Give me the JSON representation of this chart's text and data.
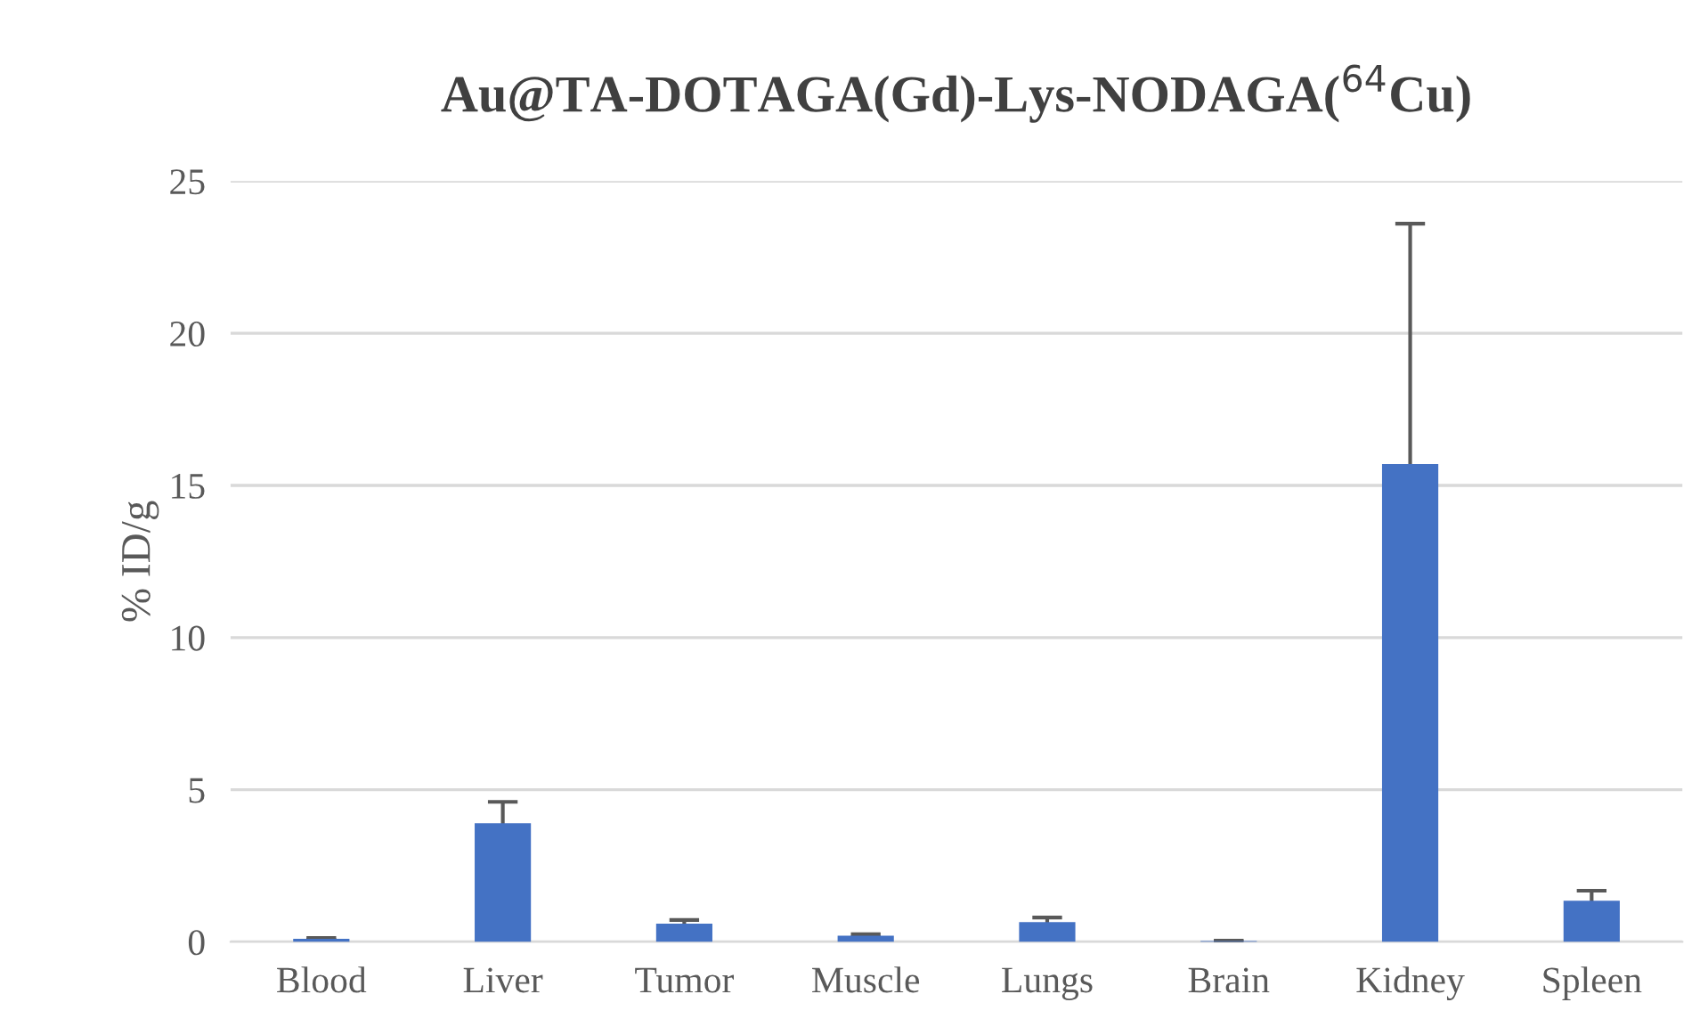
{
  "chart_data": {
    "type": "bar",
    "title": "Au@TA-DOTAGA(Gd)-Lys-NODAGA($^{64}$Cu)",
    "ylabel": "% ID/g",
    "categories": [
      "Blood",
      "Liver",
      "Tumor",
      "Muscle",
      "Lungs",
      "Brain",
      "Kidney",
      "Spleen"
    ],
    "values": [
      0.1,
      3.9,
      0.6,
      0.2,
      0.65,
      0.03,
      15.7,
      1.35
    ],
    "errors": [
      0.03,
      0.7,
      0.12,
      0.05,
      0.15,
      0.01,
      7.9,
      0.33
    ],
    "color": "#4472c4",
    "ylim": [
      0,
      25
    ],
    "yticks": [
      0,
      5,
      10,
      15,
      20,
      25
    ],
    "grid": "y"
  }
}
